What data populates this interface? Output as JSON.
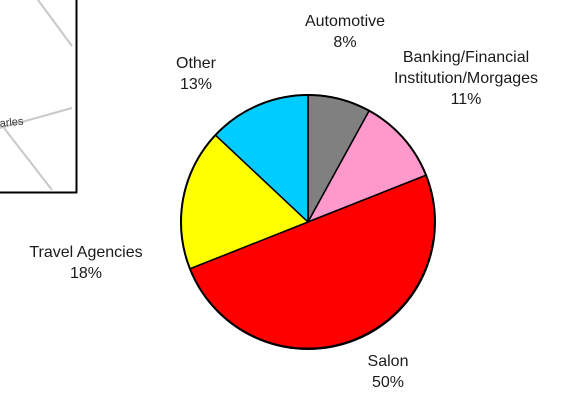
{
  "map_fragment": {
    "label": "arles"
  },
  "chart_data": {
    "type": "pie",
    "start_angle_deg": 0,
    "direction": "clockwise",
    "slices": [
      {
        "label": "Automotive",
        "pct_text": "8%",
        "value": 8,
        "color": "#808080"
      },
      {
        "label": "Banking/Financial\nInstitution/Morgages",
        "pct_text": "11%",
        "value": 11,
        "color": "#ff99cc"
      },
      {
        "label": "Salon",
        "pct_text": "50%",
        "value": 50,
        "color": "#ff0000"
      },
      {
        "label": "Travel Agencies",
        "pct_text": "18%",
        "value": 18,
        "color": "#ffff00"
      },
      {
        "label": "Other",
        "pct_text": "13%",
        "value": 13,
        "color": "#00ccff"
      }
    ]
  }
}
